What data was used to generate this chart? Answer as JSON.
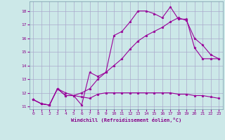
{
  "background_color": "#cce8e8",
  "grid_color": "#aaaacc",
  "line_color": "#990099",
  "marker": "*",
  "xlabel": "Windchill (Refroidissement éolien,°C)",
  "xlabel_color": "#880088",
  "ylabel_color": "#880088",
  "xlim": [
    -0.5,
    23.5
  ],
  "ylim": [
    10.8,
    18.7
  ],
  "yticks": [
    11,
    12,
    13,
    14,
    15,
    16,
    17,
    18
  ],
  "xticks": [
    0,
    1,
    2,
    3,
    4,
    5,
    6,
    7,
    8,
    9,
    10,
    11,
    12,
    13,
    14,
    15,
    16,
    17,
    18,
    19,
    20,
    21,
    22,
    23
  ],
  "curve1_x": [
    0,
    1,
    2,
    3,
    4,
    5,
    6,
    7,
    8,
    9,
    10,
    11,
    12,
    13,
    14,
    15,
    16,
    17,
    18,
    19,
    20,
    21,
    22,
    23
  ],
  "curve1_y": [
    11.5,
    11.2,
    11.1,
    12.3,
    11.8,
    11.8,
    11.7,
    11.6,
    11.9,
    12.0,
    12.0,
    12.0,
    12.0,
    12.0,
    12.0,
    12.0,
    12.0,
    12.0,
    11.9,
    11.9,
    11.8,
    11.8,
    11.7,
    11.6
  ],
  "curve2_x": [
    0,
    1,
    2,
    3,
    4,
    5,
    6,
    7,
    8,
    9,
    10,
    11,
    12,
    13,
    14,
    15,
    16,
    17,
    18,
    19,
    20,
    21,
    22,
    23
  ],
  "curve2_y": [
    11.5,
    11.2,
    11.1,
    12.3,
    11.8,
    11.8,
    11.1,
    13.5,
    13.2,
    13.5,
    16.2,
    16.5,
    17.2,
    18.0,
    18.0,
    17.8,
    17.5,
    18.3,
    17.4,
    17.4,
    15.3,
    14.5,
    14.5,
    14.5
  ],
  "curve3_x": [
    0,
    1,
    2,
    3,
    4,
    5,
    6,
    7,
    8,
    9,
    10,
    11,
    12,
    13,
    14,
    15,
    16,
    17,
    18,
    19,
    20,
    21,
    22,
    23
  ],
  "curve3_y": [
    11.5,
    11.2,
    11.1,
    12.3,
    12.0,
    11.8,
    12.0,
    12.3,
    13.0,
    13.5,
    14.0,
    14.5,
    15.2,
    15.8,
    16.2,
    16.5,
    16.8,
    17.2,
    17.5,
    17.3,
    16.0,
    15.5,
    14.8,
    14.5
  ]
}
